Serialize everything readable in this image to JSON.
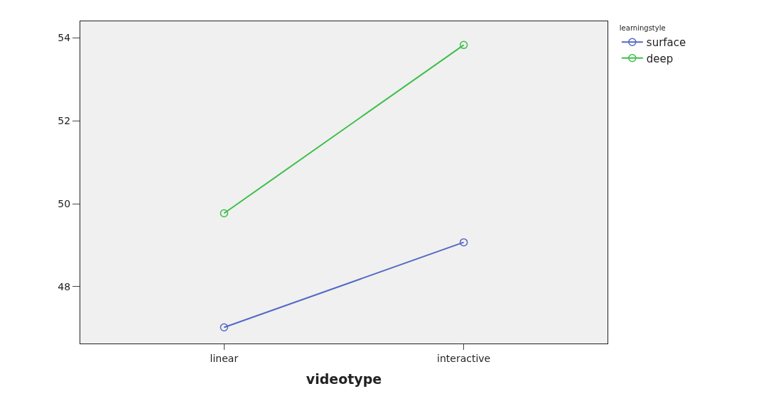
{
  "chart_data": {
    "type": "line",
    "xlabel": "videotype",
    "legend_title": "learningstyle",
    "categories": [
      "linear",
      "interactive"
    ],
    "series": [
      {
        "name": "surface",
        "color": "#5468c4",
        "values": [
          47.02,
          49.07
        ]
      },
      {
        "name": "deep",
        "color": "#3cbf48",
        "values": [
          49.77,
          53.83
        ]
      }
    ],
    "ylim": [
      46.63,
      54.4
    ],
    "yticks": [
      48,
      50,
      52,
      54
    ],
    "grid": false,
    "legend": "top right",
    "marker": "circle",
    "line_style": "solid"
  }
}
